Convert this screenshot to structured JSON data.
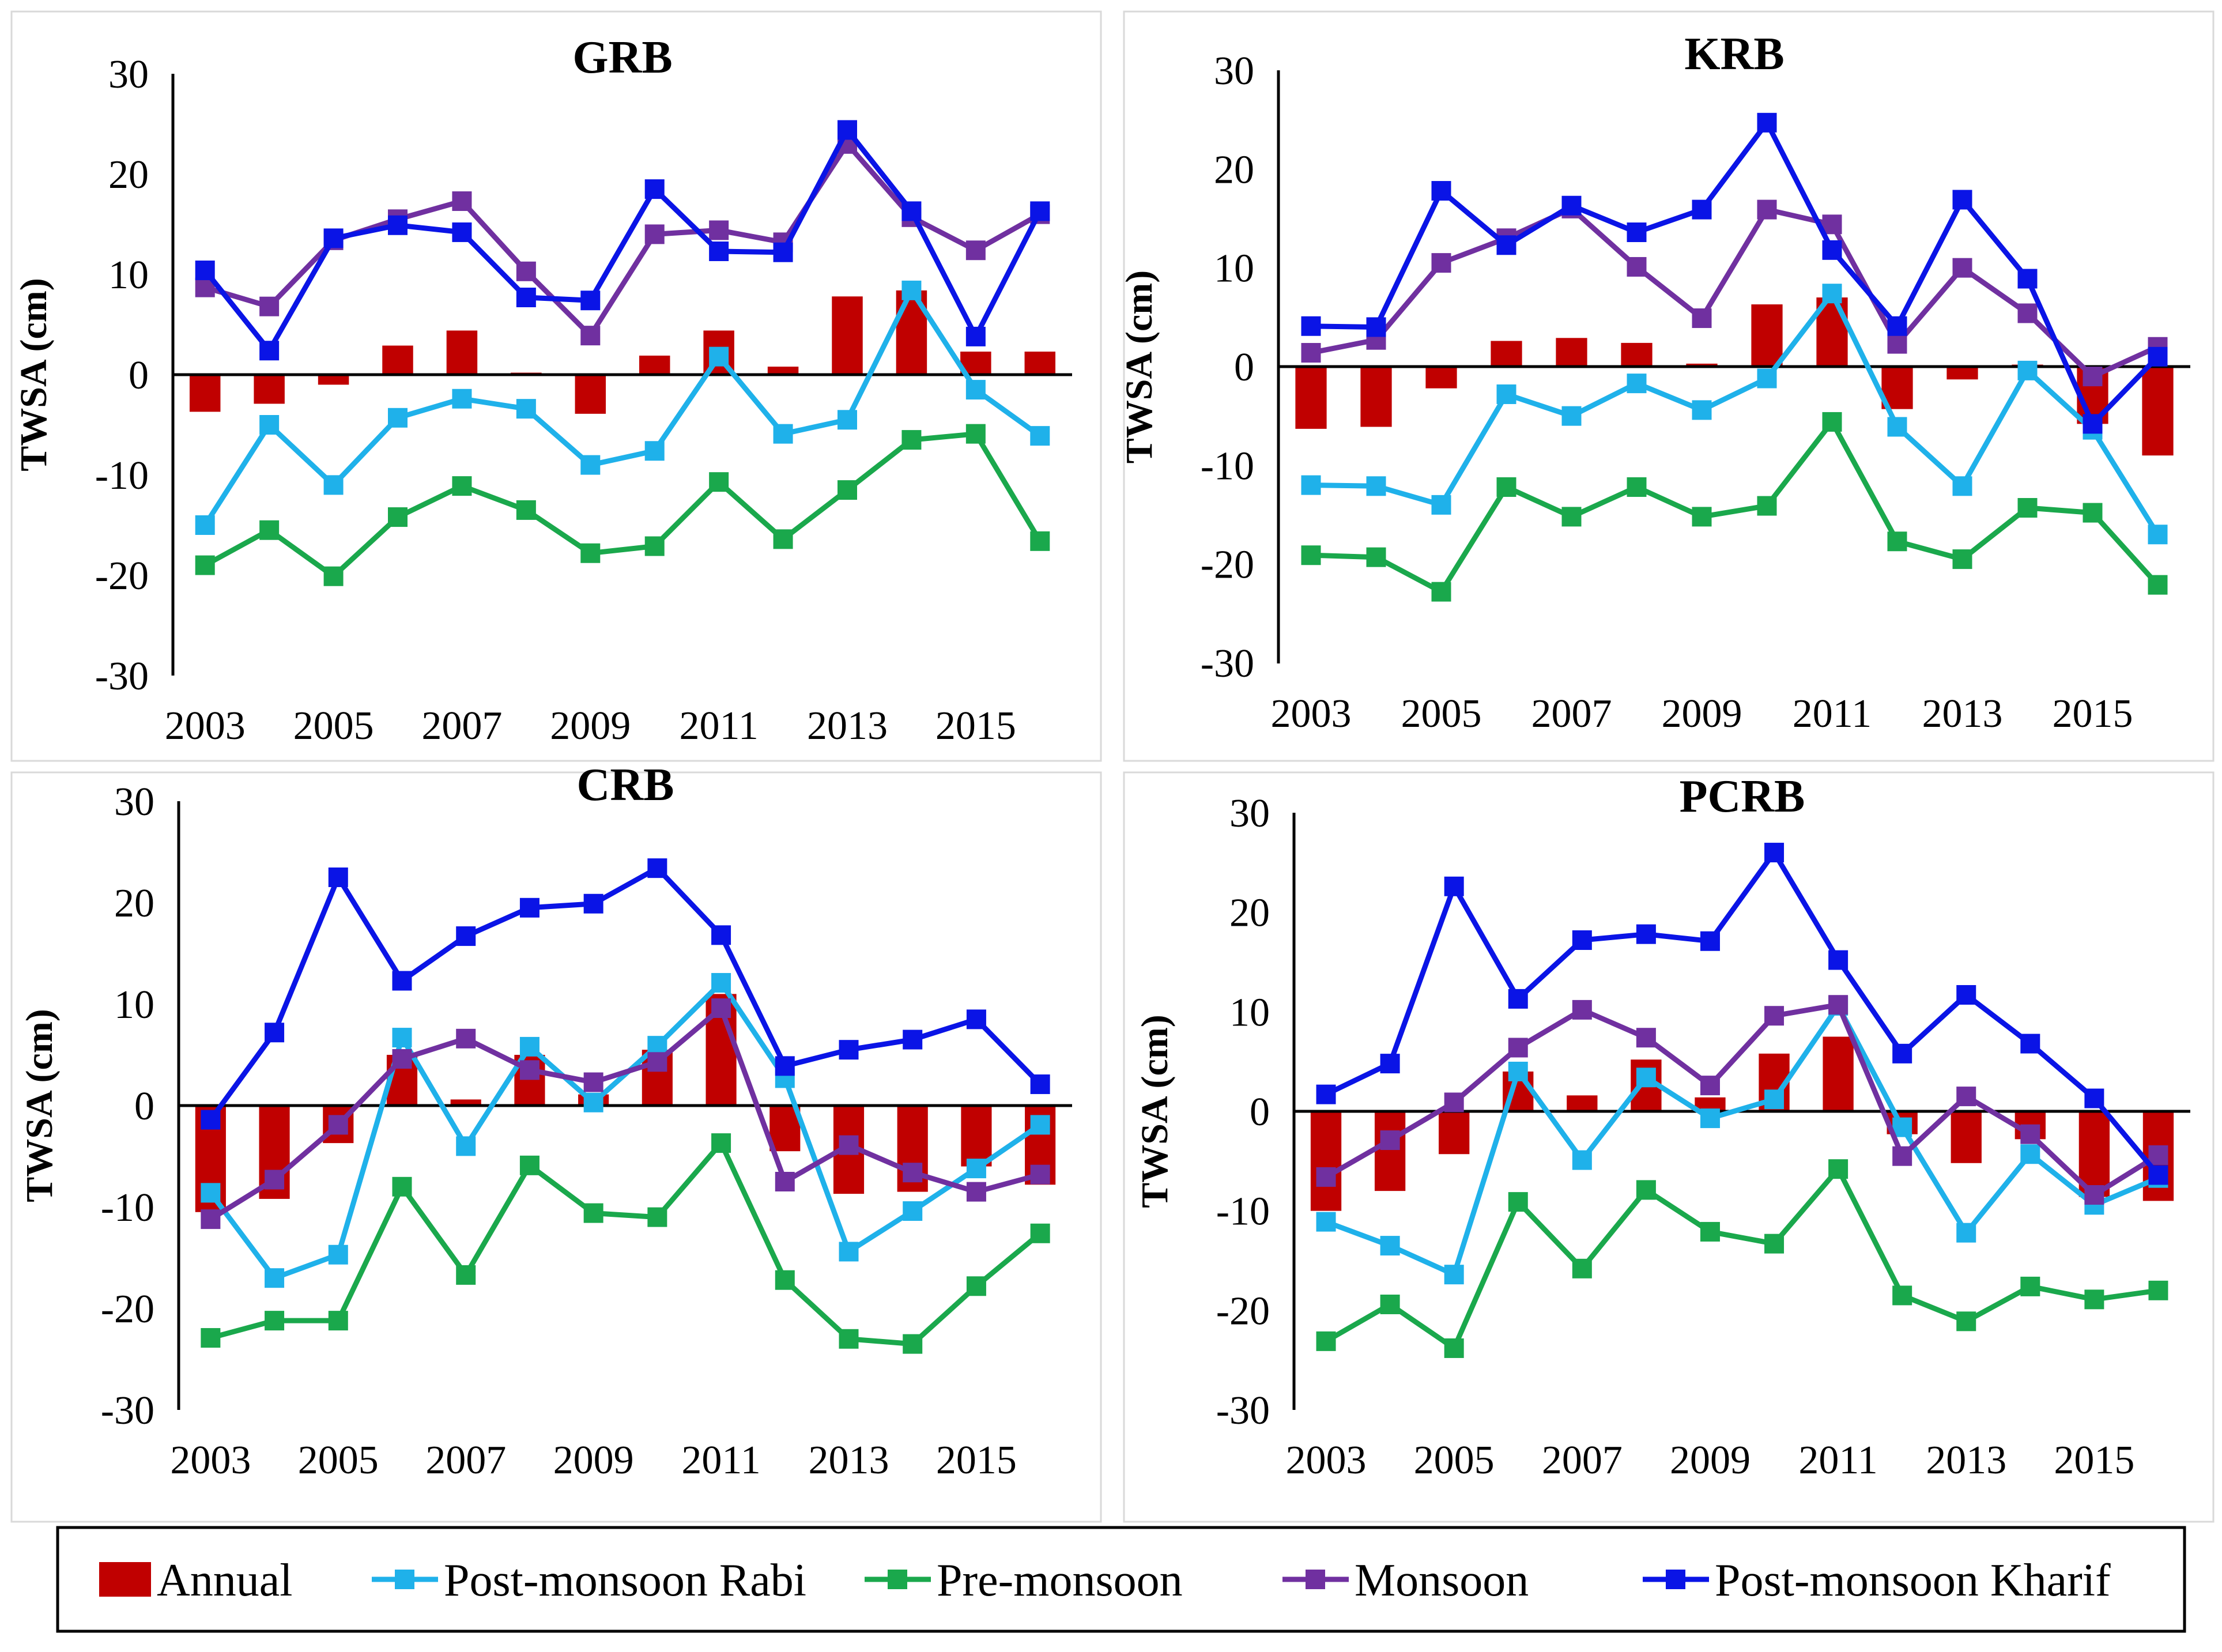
{
  "legend": [
    {
      "key": "annual",
      "label": "Annual",
      "kind": "bar",
      "color": "#c00000"
    },
    {
      "key": "rabi",
      "label": "Post-monsoon Rabi",
      "kind": "line",
      "color": "#1fb1ea"
    },
    {
      "key": "pre",
      "label": "Pre-monsoon",
      "kind": "line",
      "color": "#1aa84c"
    },
    {
      "key": "monsoon",
      "label": "Monsoon",
      "kind": "line",
      "color": "#7030a0"
    },
    {
      "key": "kharif",
      "label": "Post-monsoon Kharif",
      "kind": "line",
      "color": "#0a14e6"
    }
  ],
  "chart_data": [
    {
      "type": "bar+line",
      "title": "GRB",
      "ylabel": "TWSA (cm)",
      "ylim": [
        -30,
        30
      ],
      "yticks": [
        "30",
        "20",
        "10",
        "0",
        "-10",
        "-20",
        "-30"
      ],
      "x": [
        2003,
        2004,
        2005,
        2006,
        2007,
        2008,
        2009,
        2010,
        2011,
        2012,
        2013,
        2014,
        2015,
        2016
      ],
      "xtick_labels": [
        "2003",
        "2005",
        "2007",
        "2009",
        "2011",
        "2013",
        "2015"
      ],
      "annual": [
        -3.7,
        -2.9,
        -1.0,
        2.9,
        4.4,
        0.2,
        -3.9,
        1.9,
        4.4,
        0.8,
        7.8,
        8.4,
        2.3,
        2.3
      ],
      "series": [
        {
          "key": "rabi",
          "values": [
            -15.0,
            -5.0,
            -11.0,
            -4.3,
            -2.4,
            -3.4,
            -9.0,
            -7.6,
            1.8,
            -5.9,
            -4.5,
            8.4,
            -1.5,
            -6.1
          ]
        },
        {
          "key": "pre",
          "values": [
            -19.0,
            -15.5,
            -20.1,
            -14.2,
            -11.1,
            -13.5,
            -17.8,
            -17.1,
            -10.7,
            -16.4,
            -11.5,
            -6.5,
            -5.9,
            -16.6
          ]
        },
        {
          "key": "monsoon",
          "values": [
            8.7,
            6.8,
            13.4,
            15.5,
            17.3,
            10.3,
            3.9,
            14.0,
            14.4,
            13.2,
            23.0,
            15.7,
            12.4,
            16.0
          ]
        },
        {
          "key": "kharif",
          "values": [
            10.4,
            2.4,
            13.6,
            14.9,
            14.2,
            7.7,
            7.4,
            18.5,
            12.3,
            12.2,
            24.4,
            16.3,
            3.8,
            16.3
          ]
        }
      ]
    },
    {
      "type": "bar+line",
      "title": "KRB",
      "ylabel": "TWSA (cm)",
      "ylim": [
        -30,
        30
      ],
      "yticks": [
        "30",
        "20",
        "10",
        "0",
        "-10",
        "-20",
        "-30"
      ],
      "x": [
        2003,
        2004,
        2005,
        2006,
        2007,
        2008,
        2009,
        2010,
        2011,
        2012,
        2013,
        2014,
        2015,
        2016
      ],
      "xtick_labels": [
        "2003",
        "2005",
        "2007",
        "2009",
        "2011",
        "2013",
        "2015"
      ],
      "annual": [
        -6.3,
        -6.1,
        -2.2,
        2.6,
        2.9,
        2.4,
        0.3,
        6.3,
        7.0,
        -4.3,
        -1.3,
        0.2,
        -5.8,
        -9.0
      ],
      "series": [
        {
          "key": "rabi",
          "values": [
            -12.0,
            -12.1,
            -14.0,
            -2.8,
            -5.0,
            -1.7,
            -4.4,
            -1.2,
            7.4,
            -6.1,
            -12.1,
            -0.4,
            -6.4,
            -17.0
          ]
        },
        {
          "key": "pre",
          "values": [
            -19.1,
            -19.3,
            -22.8,
            -12.2,
            -15.2,
            -12.2,
            -15.2,
            -14.1,
            -5.6,
            -17.7,
            -19.5,
            -14.3,
            -14.8,
            -22.1
          ]
        },
        {
          "key": "monsoon",
          "values": [
            1.4,
            2.7,
            10.5,
            13.0,
            16.0,
            10.1,
            4.9,
            15.9,
            14.4,
            2.3,
            10.0,
            5.4,
            -1.0,
            2.0
          ]
        },
        {
          "key": "kharif",
          "values": [
            4.1,
            4.0,
            17.8,
            12.3,
            16.3,
            13.6,
            15.9,
            24.7,
            11.8,
            4.1,
            16.9,
            8.9,
            -5.8,
            1.0
          ]
        }
      ]
    },
    {
      "type": "bar+line",
      "title": "CRB",
      "ylabel": "TWSA (cm)",
      "ylim": [
        -30,
        30
      ],
      "yticks": [
        "30",
        "20",
        "10",
        "0",
        "-10",
        "-20",
        "-30"
      ],
      "x": [
        2003,
        2004,
        2005,
        2006,
        2007,
        2008,
        2009,
        2010,
        2011,
        2012,
        2013,
        2014,
        2015,
        2016
      ],
      "xtick_labels": [
        "2003",
        "2005",
        "2007",
        "2009",
        "2011",
        "2013",
        "2015"
      ],
      "annual": [
        -10.5,
        -9.2,
        -3.7,
        5.0,
        0.6,
        5.0,
        1.1,
        5.5,
        11.0,
        -4.5,
        -8.7,
        -8.5,
        -6.0,
        -7.8
      ],
      "series": [
        {
          "key": "rabi",
          "values": [
            -8.6,
            -17.0,
            -14.7,
            6.7,
            -4.0,
            5.8,
            0.3,
            5.9,
            12.1,
            2.7,
            -14.4,
            -10.4,
            -6.2,
            -1.9
          ]
        },
        {
          "key": "pre",
          "values": [
            -22.9,
            -21.2,
            -21.2,
            -8.0,
            -16.7,
            -5.9,
            -10.6,
            -11.0,
            -3.7,
            -17.2,
            -23.0,
            -23.5,
            -17.8,
            -12.6
          ]
        },
        {
          "key": "monsoon",
          "values": [
            -11.2,
            -7.3,
            -1.9,
            4.6,
            6.6,
            3.5,
            2.3,
            4.3,
            9.6,
            -7.5,
            -3.9,
            -6.6,
            -8.5,
            -6.8
          ]
        },
        {
          "key": "kharif",
          "values": [
            -1.4,
            7.2,
            22.5,
            12.3,
            16.7,
            19.5,
            19.9,
            23.4,
            16.8,
            3.9,
            5.5,
            6.5,
            8.5,
            2.1
          ]
        }
      ]
    },
    {
      "type": "bar+line",
      "title": "PCRB",
      "ylabel": "TWSA (cm)",
      "ylim": [
        -30,
        30
      ],
      "yticks": [
        "30",
        "20",
        "10",
        "0",
        "-10",
        "-20",
        "-30"
      ],
      "x": [
        2003,
        2004,
        2005,
        2006,
        2007,
        2008,
        2009,
        2010,
        2011,
        2012,
        2013,
        2014,
        2015,
        2016
      ],
      "xtick_labels": [
        "2003",
        "2005",
        "2007",
        "2009",
        "2011",
        "2013",
        "2015"
      ],
      "annual": [
        -10.0,
        -8.0,
        -4.3,
        4.0,
        1.6,
        5.2,
        1.4,
        5.8,
        7.5,
        -2.3,
        -5.2,
        -2.8,
        -8.6,
        -9.0
      ],
      "series": [
        {
          "key": "rabi",
          "values": [
            -11.1,
            -13.5,
            -16.4,
            4.0,
            -4.9,
            3.4,
            -0.7,
            1.2,
            10.6,
            -1.6,
            -12.2,
            -4.3,
            -9.4,
            -6.7
          ]
        },
        {
          "key": "pre",
          "values": [
            -23.1,
            -19.4,
            -23.8,
            -9.1,
            -15.8,
            -7.9,
            -12.1,
            -13.3,
            -5.8,
            -18.5,
            -21.1,
            -17.6,
            -18.9,
            -18.0
          ]
        },
        {
          "key": "monsoon",
          "values": [
            -6.6,
            -2.9,
            0.9,
            6.4,
            10.2,
            7.4,
            2.6,
            9.6,
            10.7,
            -4.5,
            1.5,
            -2.3,
            -8.4,
            -4.4
          ]
        },
        {
          "key": "kharif",
          "values": [
            1.7,
            4.8,
            22.6,
            11.3,
            17.2,
            17.8,
            17.1,
            26.0,
            15.2,
            5.8,
            11.7,
            6.8,
            1.3,
            -6.4
          ]
        }
      ]
    }
  ]
}
